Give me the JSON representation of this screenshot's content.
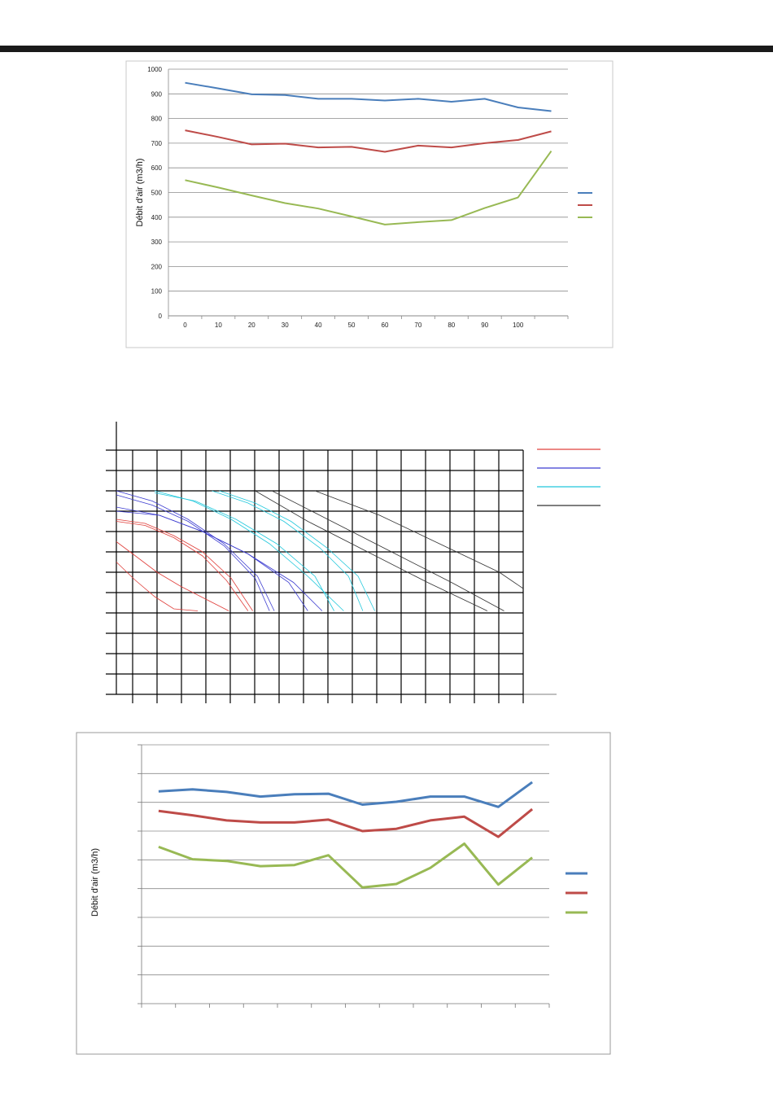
{
  "header": {
    "rule_color": "#1a1a1a"
  },
  "chart_data": [
    {
      "type": "line",
      "title": "",
      "xlabel": "",
      "ylabel": "Débit d'air (m3/h)",
      "x_ticks": [
        "0",
        "10",
        "20",
        "30",
        "40",
        "50",
        "60",
        "70",
        "80",
        "90",
        "100"
      ],
      "y_ticks": [
        "0",
        "100",
        "200",
        "300",
        "400",
        "500",
        "600",
        "700",
        "800",
        "900",
        "1000"
      ],
      "ylim": [
        0,
        1000
      ],
      "xlim": [
        -5,
        115
      ],
      "grid": true,
      "legend": "right",
      "series": [
        {
          "color": "#4a7ebb",
          "x": [
            0,
            10,
            20,
            30,
            40,
            50,
            60,
            70,
            80,
            90,
            100,
            110
          ],
          "values": [
            945,
            922,
            898,
            895,
            880,
            880,
            873,
            880,
            868,
            880,
            845,
            830
          ]
        },
        {
          "color": "#be4b48",
          "x": [
            0,
            10,
            20,
            30,
            40,
            50,
            60,
            70,
            80,
            90,
            100,
            110
          ],
          "values": [
            752,
            725,
            695,
            698,
            683,
            685,
            665,
            690,
            683,
            700,
            713,
            748
          ]
        },
        {
          "color": "#98b954",
          "x": [
            0,
            10,
            20,
            30,
            40,
            50,
            60,
            70,
            80,
            90,
            100,
            110
          ],
          "values": [
            550,
            520,
            488,
            457,
            435,
            403,
            370,
            380,
            388,
            437,
            480,
            668
          ]
        }
      ]
    },
    {
      "type": "line",
      "title": "",
      "xlabel": "",
      "ylabel": "",
      "grid": true,
      "legend": "top-right",
      "xlim": [
        0,
        17
      ],
      "ylim": [
        0,
        12
      ],
      "series": [
        {
          "color": "#e0403c",
          "curves": [
            {
              "x": [
                0,
                0.8,
                1.6,
                2.4,
                3.4
              ],
              "values": [
                6.5,
                5.6,
                4.8,
                4.2,
                4.1
              ]
            },
            {
              "x": [
                0,
                0.8,
                1.7,
                2.7,
                3.7,
                4.7
              ],
              "values": [
                7.5,
                6.8,
                6.0,
                5.3,
                4.7,
                4.1
              ]
            },
            {
              "x": [
                0,
                1.2,
                2.4,
                3.6,
                4.8,
                5.7
              ],
              "values": [
                8.6,
                8.4,
                7.8,
                7.0,
                5.7,
                4.1
              ]
            },
            {
              "x": [
                0,
                1.2,
                2.4,
                3.6,
                4.6,
                5.5
              ],
              "values": [
                8.5,
                8.3,
                7.7,
                6.8,
                5.6,
                4.1
              ]
            }
          ]
        },
        {
          "color": "#3c3cd0",
          "curves": [
            {
              "x": [
                0,
                1.5,
                3,
                4.5,
                5.9,
                6.6
              ],
              "values": [
                10.0,
                9.5,
                8.6,
                7.4,
                5.8,
                4.1
              ]
            },
            {
              "x": [
                0,
                1.5,
                3,
                4.5,
                5.8,
                6.4
              ],
              "values": [
                9.8,
                9.3,
                8.5,
                7.3,
                5.7,
                4.1
              ]
            },
            {
              "x": [
                0,
                1.8,
                3.6,
                5.5,
                7.2,
                8.0
              ],
              "values": [
                9.2,
                8.8,
                8.0,
                6.9,
                5.5,
                4.1
              ]
            },
            {
              "x": [
                0,
                1.8,
                3.6,
                5.5,
                7.4,
                8.6
              ],
              "values": [
                9.0,
                8.8,
                8.0,
                6.9,
                5.5,
                4.1
              ]
            }
          ]
        },
        {
          "color": "#22c8dc",
          "curves": [
            {
              "x": [
                1.6,
                3.2,
                4.8,
                6.4,
                8.0,
                9.5
              ],
              "values": [
                10.0,
                9.5,
                8.6,
                7.4,
                5.8,
                4.1
              ]
            },
            {
              "x": [
                1.6,
                3.3,
                5.0,
                6.7,
                8.3,
                9.1
              ],
              "values": [
                9.9,
                9.5,
                8.6,
                7.4,
                5.8,
                4.1
              ]
            },
            {
              "x": [
                4.3,
                5.8,
                7.3,
                8.8,
                10.1,
                10.8
              ],
              "values": [
                10.0,
                9.4,
                8.5,
                7.2,
                5.8,
                4.1
              ]
            },
            {
              "x": [
                4.0,
                5.5,
                7.0,
                8.5,
                9.7,
                10.3
              ],
              "values": [
                10.0,
                9.4,
                8.5,
                7.2,
                5.8,
                4.1
              ]
            }
          ]
        },
        {
          "color": "#333333",
          "curves": [
            {
              "x": [
                5.8,
                8.0,
                10.5,
                13.0,
                15.5
              ],
              "values": [
                10.0,
                8.5,
                7.0,
                5.5,
                4.1
              ]
            },
            {
              "x": [
                6.5,
                9.0,
                11.5,
                14.0,
                16.2
              ],
              "values": [
                10.0,
                8.5,
                7.0,
                5.5,
                4.1
              ]
            },
            {
              "x": [
                8.3,
                11.0,
                13.5,
                16.0,
                17.0
              ],
              "values": [
                10.0,
                8.8,
                7.4,
                6.0,
                5.2
              ]
            }
          ]
        }
      ]
    },
    {
      "type": "line",
      "title": "",
      "xlabel": "",
      "ylabel": "Débit d'air (m3/h)",
      "ylim": [
        0,
        9
      ],
      "xlim": [
        0,
        12
      ],
      "grid": true,
      "legend": "right",
      "series": [
        {
          "color": "#4a7ebb",
          "x": [
            0.5,
            1.5,
            2.5,
            3.5,
            4.5,
            5.5,
            6.5,
            7.5,
            8.5,
            9.5,
            10.5,
            11.5
          ],
          "values": [
            7.38,
            7.45,
            7.36,
            7.2,
            7.28,
            7.3,
            6.92,
            7.02,
            7.2,
            7.2,
            6.84,
            7.7
          ]
        },
        {
          "color": "#be4b48",
          "x": [
            0.5,
            1.5,
            2.5,
            3.5,
            4.5,
            5.5,
            6.5,
            7.5,
            8.5,
            9.5,
            10.5,
            11.5
          ],
          "values": [
            6.7,
            6.55,
            6.37,
            6.3,
            6.3,
            6.4,
            6.0,
            6.08,
            6.37,
            6.5,
            5.8,
            6.76
          ]
        },
        {
          "color": "#98b954",
          "x": [
            0.5,
            1.5,
            2.5,
            3.5,
            4.5,
            5.5,
            6.5,
            7.5,
            8.5,
            9.5,
            10.5,
            11.5
          ],
          "values": [
            5.45,
            5.02,
            4.96,
            4.78,
            4.82,
            5.16,
            4.04,
            4.16,
            4.72,
            5.56,
            4.14,
            5.08
          ]
        }
      ]
    }
  ]
}
